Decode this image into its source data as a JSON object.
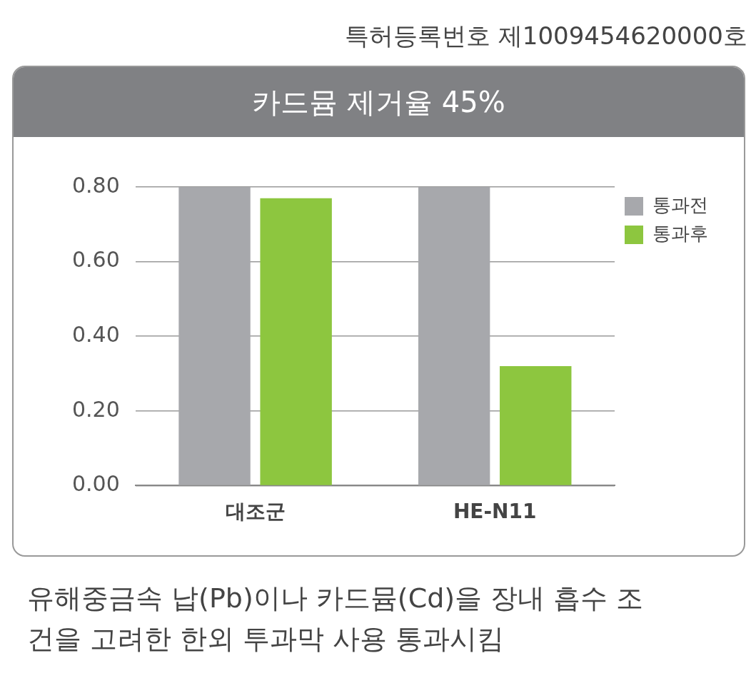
{
  "chart_data": {
    "type": "bar",
    "title": "카드뮴 제거율 45%",
    "categories": [
      "대조군",
      "HE-N11"
    ],
    "series": [
      {
        "name": "통과전",
        "color": "#a7a8ac",
        "values": [
          0.8,
          0.8
        ]
      },
      {
        "name": "통과후",
        "color": "#8dc63f",
        "values": [
          0.77,
          0.32
        ]
      }
    ],
    "ylim": [
      0,
      0.8
    ],
    "yticks": [
      {
        "value": 0,
        "label": "0.00"
      },
      {
        "value": 0.2,
        "label": "0.20"
      },
      {
        "value": 0.4,
        "label": "0.40"
      },
      {
        "value": 0.6,
        "label": "0.60"
      },
      {
        "value": 0.8,
        "label": "0.80"
      }
    ],
    "grid": "y",
    "legend": "top right",
    "annotations": [
      "특허등록번호 제1009454620000호",
      "유해중금속 납(Pb)이나 카드뮴(Cd)을 장내 흡수 조건을 고려한 한외 투과막 사용 통과시킴"
    ]
  }
}
